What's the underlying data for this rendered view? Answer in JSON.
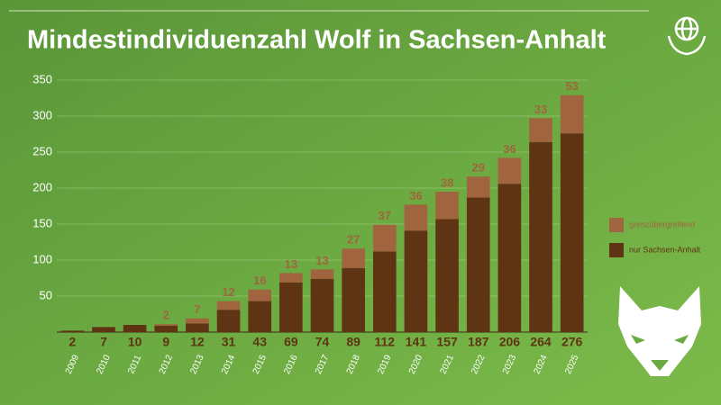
{
  "chart_data": {
    "type": "stacked-bar",
    "title": "Mindestindividuenzahl Wolf in Sachsen-Anhalt",
    "categories": [
      "2009",
      "2010",
      "2011",
      "2012",
      "2013",
      "2014",
      "2015",
      "2016",
      "2017",
      "2018",
      "2019",
      "2020",
      "2021",
      "2022",
      "2023",
      "2024",
      "2025"
    ],
    "series": [
      {
        "name": "nur Sachsen-Anhalt",
        "color": "#5e3414",
        "values": [
          2,
          7,
          10,
          9,
          12,
          31,
          43,
          69,
          74,
          89,
          112,
          141,
          157,
          187,
          206,
          264,
          276
        ]
      },
      {
        "name": "grenzübergreifend",
        "color": "#a0653e",
        "values": [
          null,
          null,
          null,
          2,
          7,
          12,
          16,
          13,
          13,
          27,
          37,
          36,
          38,
          29,
          36,
          33,
          53
        ]
      }
    ],
    "ylim": [
      0,
      350
    ],
    "yticks": [
      50,
      100,
      150,
      200,
      250,
      300,
      350
    ],
    "grid": true
  }
}
